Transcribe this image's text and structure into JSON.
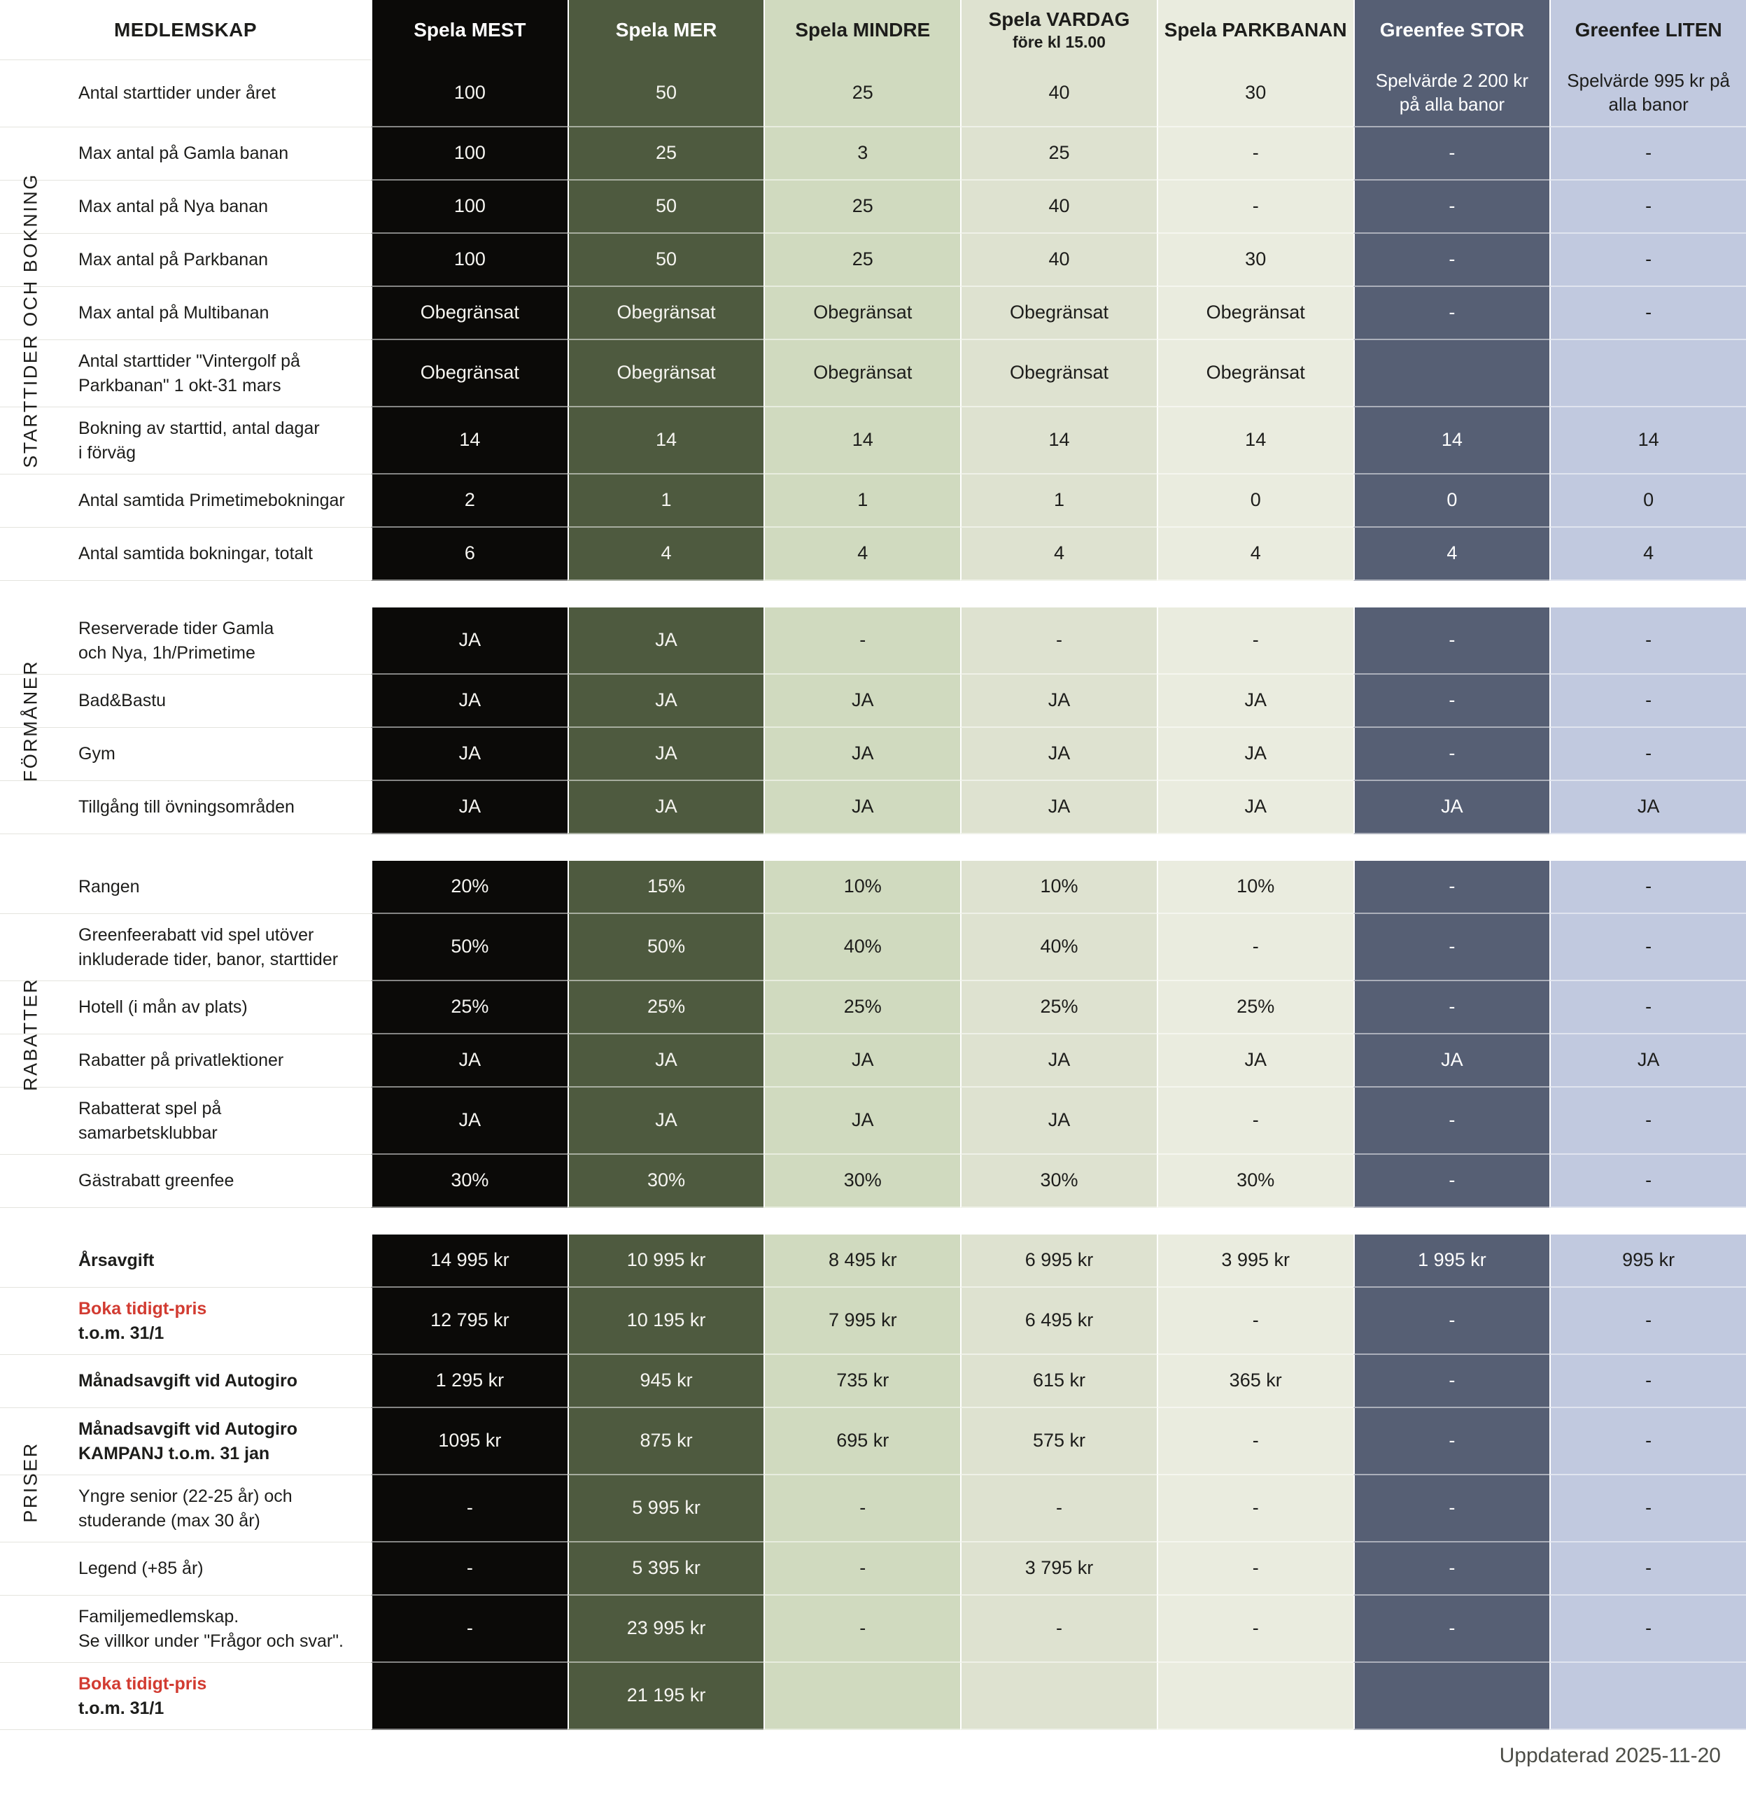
{
  "colors": {
    "page_bg": "#ffffff",
    "text_dark": "#1d1d1b",
    "text_light": "#ffffff",
    "red_accent": "#d23b31",
    "row_line": "#e4e4de",
    "footer_text": "#4c4d47"
  },
  "header": {
    "label_col_title": "MEDLEMSKAP",
    "columns": [
      {
        "name": "spela-mest",
        "label": "Spela MEST",
        "bg": "#0b0a08",
        "header_fg": "#ffffff",
        "cell_fg": "#f6f5f1"
      },
      {
        "name": "spela-mer",
        "label": "Spela MER",
        "bg": "#4e5a3f",
        "header_fg": "#ffffff",
        "cell_fg": "#f6f5f1"
      },
      {
        "name": "spela-mindre",
        "label": "Spela MINDRE",
        "bg": "#d0dabf",
        "header_fg": "#1d1d1b",
        "cell_fg": "#1d1d1b"
      },
      {
        "name": "spela-vardag",
        "label": "Spela VARDAG",
        "sublabel": "före kl 15.00",
        "bg": "#dee2d0",
        "header_fg": "#1d1d1b",
        "cell_fg": "#1d1d1b"
      },
      {
        "name": "spela-parkbanan",
        "label": "Spela PARKBANAN",
        "bg": "#eaecdf",
        "header_fg": "#1d1d1b",
        "cell_fg": "#1d1d1b"
      },
      {
        "name": "greenfee-stor",
        "label": "Greenfee STOR",
        "bg": "#565f74",
        "header_fg": "#ffffff",
        "cell_fg": "#ffffff"
      },
      {
        "name": "greenfee-liten",
        "label": "Greenfee LITEN",
        "bg": "#c1c9df",
        "header_fg": "#1d1d1b",
        "cell_fg": "#1d1d1b"
      }
    ]
  },
  "sections": [
    {
      "title": "STARTTIDER OCH BOKNING",
      "rows": [
        {
          "label_lines": [
            {
              "text": "Antal starttider under året",
              "style": "normal"
            }
          ],
          "values": [
            "100",
            "50",
            "25",
            "40",
            "30",
            "Spelvärde 2 200 kr på alla banor",
            "Spelvärde 995 kr på alla banor"
          ]
        },
        {
          "label_lines": [
            {
              "text": "Max antal på Gamla banan",
              "style": "normal"
            }
          ],
          "values": [
            "100",
            "25",
            "3",
            "25",
            "-",
            "-",
            "-"
          ]
        },
        {
          "label_lines": [
            {
              "text": "Max antal på Nya banan",
              "style": "normal"
            }
          ],
          "values": [
            "100",
            "50",
            "25",
            "40",
            "-",
            "-",
            "-"
          ]
        },
        {
          "label_lines": [
            {
              "text": "Max antal på Parkbanan",
              "style": "normal"
            }
          ],
          "values": [
            "100",
            "50",
            "25",
            "40",
            "30",
            "-",
            "-"
          ]
        },
        {
          "label_lines": [
            {
              "text": "Max antal på Multibanan",
              "style": "normal"
            }
          ],
          "values": [
            "Obegränsat",
            "Obegränsat",
            "Obegränsat",
            "Obegränsat",
            "Obegränsat",
            "-",
            "-"
          ]
        },
        {
          "label_lines": [
            {
              "text": "Antal starttider \"Vintergolf på",
              "style": "normal"
            },
            {
              "text": "Parkbanan\" 1 okt-31 mars",
              "style": "normal"
            }
          ],
          "values": [
            "Obegränsat",
            "Obegränsat",
            "Obegränsat",
            "Obegränsat",
            "Obegränsat",
            "",
            ""
          ]
        },
        {
          "label_lines": [
            {
              "text": "Bokning av starttid, antal dagar",
              "style": "normal"
            },
            {
              "text": "i förväg",
              "style": "normal"
            }
          ],
          "values": [
            "14",
            "14",
            "14",
            "14",
            "14",
            "14",
            "14"
          ]
        },
        {
          "label_lines": [
            {
              "text": "Antal samtida Primetimebokningar",
              "style": "normal"
            }
          ],
          "values": [
            "2",
            "1",
            "1",
            "1",
            "0",
            "0",
            "0"
          ]
        },
        {
          "label_lines": [
            {
              "text": "Antal samtida bokningar, totalt",
              "style": "normal"
            }
          ],
          "values": [
            "6",
            "4",
            "4",
            "4",
            "4",
            "4",
            "4"
          ]
        }
      ]
    },
    {
      "title": "FÖRMÅNER",
      "rows": [
        {
          "label_lines": [
            {
              "text": "Reserverade tider Gamla",
              "style": "normal"
            },
            {
              "text": "och Nya, 1h/Primetime",
              "style": "normal"
            }
          ],
          "values": [
            "JA",
            "JA",
            "-",
            "-",
            "-",
            "-",
            "-"
          ]
        },
        {
          "label_lines": [
            {
              "text": "Bad&Bastu",
              "style": "normal"
            }
          ],
          "values": [
            "JA",
            "JA",
            "JA",
            "JA",
            "JA",
            "-",
            "-"
          ]
        },
        {
          "label_lines": [
            {
              "text": "Gym",
              "style": "normal"
            }
          ],
          "values": [
            "JA",
            "JA",
            "JA",
            "JA",
            "JA",
            "-",
            "-"
          ]
        },
        {
          "label_lines": [
            {
              "text": "Tillgång till övningsområden",
              "style": "normal"
            }
          ],
          "values": [
            "JA",
            "JA",
            "JA",
            "JA",
            "JA",
            "JA",
            "JA"
          ]
        }
      ]
    },
    {
      "title": "RABATTER",
      "rows": [
        {
          "label_lines": [
            {
              "text": "Rangen",
              "style": "normal"
            }
          ],
          "values": [
            "20%",
            "15%",
            "10%",
            "10%",
            "10%",
            "-",
            "-"
          ]
        },
        {
          "label_lines": [
            {
              "text": "Greenfeerabatt vid spel utöver",
              "style": "normal"
            },
            {
              "text": "inkluderade tider, banor, starttider",
              "style": "normal"
            }
          ],
          "values": [
            "50%",
            "50%",
            "40%",
            "40%",
            "-",
            "-",
            "-"
          ]
        },
        {
          "label_lines": [
            {
              "text": "Hotell (i mån av plats)",
              "style": "normal"
            }
          ],
          "values": [
            "25%",
            "25%",
            "25%",
            "25%",
            "25%",
            "-",
            "-"
          ]
        },
        {
          "label_lines": [
            {
              "text": "Rabatter på privatlektioner",
              "style": "normal"
            }
          ],
          "values": [
            "JA",
            "JA",
            "JA",
            "JA",
            "JA",
            "JA",
            "JA"
          ]
        },
        {
          "label_lines": [
            {
              "text": "Rabatterat spel på",
              "style": "normal"
            },
            {
              "text": "samarbetsklubbar",
              "style": "normal"
            }
          ],
          "values": [
            "JA",
            "JA",
            "JA",
            "JA",
            "-",
            "-",
            "-"
          ]
        },
        {
          "label_lines": [
            {
              "text": "Gästrabatt greenfee",
              "style": "normal"
            }
          ],
          "values": [
            "30%",
            "30%",
            "30%",
            "30%",
            "30%",
            "-",
            "-"
          ]
        }
      ]
    },
    {
      "title": "PRISER",
      "rows": [
        {
          "label_lines": [
            {
              "text": "Årsavgift",
              "style": "bold"
            }
          ],
          "values": [
            "14 995 kr",
            "10 995 kr",
            "8 495 kr",
            "6 995 kr",
            "3 995 kr",
            "1 995 kr",
            "995 kr"
          ]
        },
        {
          "label_lines": [
            {
              "text": "Boka tidigt-pris",
              "style": "red"
            },
            {
              "text": "t.o.m. 31/1",
              "style": "bold"
            }
          ],
          "values": [
            "12 795 kr",
            "10 195 kr",
            "7 995 kr",
            "6 495 kr",
            "-",
            "-",
            "-"
          ]
        },
        {
          "label_lines": [
            {
              "text": "Månadsavgift vid Autogiro",
              "style": "bold"
            }
          ],
          "values": [
            "1 295 kr",
            "945 kr",
            "735 kr",
            "615 kr",
            "365 kr",
            "-",
            "-"
          ]
        },
        {
          "label_lines": [
            {
              "text": "Månadsavgift vid Autogiro",
              "style": "bold"
            },
            {
              "text": "KAMPANJ t.o.m. 31 jan",
              "style": "bold"
            }
          ],
          "values": [
            "1095 kr",
            "875 kr",
            "695 kr",
            "575 kr",
            "-",
            "-",
            "-"
          ]
        },
        {
          "label_lines": [
            {
              "text": "Yngre senior (22-25 år) och",
              "style": "normal"
            },
            {
              "text": "studerande (max 30 år)",
              "style": "normal"
            }
          ],
          "values": [
            "-",
            "5 995 kr",
            "-",
            "-",
            "-",
            "-",
            "-"
          ]
        },
        {
          "label_lines": [
            {
              "text": "Legend (+85 år)",
              "style": "normal"
            }
          ],
          "values": [
            "-",
            "5 395 kr",
            "-",
            "3 795 kr",
            "-",
            "-",
            "-"
          ]
        },
        {
          "label_lines": [
            {
              "text": "Familjemedlemskap.",
              "style": "normal"
            },
            {
              "text": "Se villkor under \"Frågor och svar\".",
              "style": "normal"
            }
          ],
          "values": [
            "-",
            "23 995 kr",
            "-",
            "-",
            "-",
            "-",
            "-"
          ]
        },
        {
          "label_lines": [
            {
              "text": "Boka tidigt-pris",
              "style": "red"
            },
            {
              "text": "t.o.m. 31/1",
              "style": "bold"
            }
          ],
          "values": [
            "",
            "21 195 kr",
            "",
            "",
            "",
            "",
            ""
          ]
        }
      ]
    }
  ],
  "footer": {
    "updated": "Uppdaterad 2025-11-20"
  }
}
